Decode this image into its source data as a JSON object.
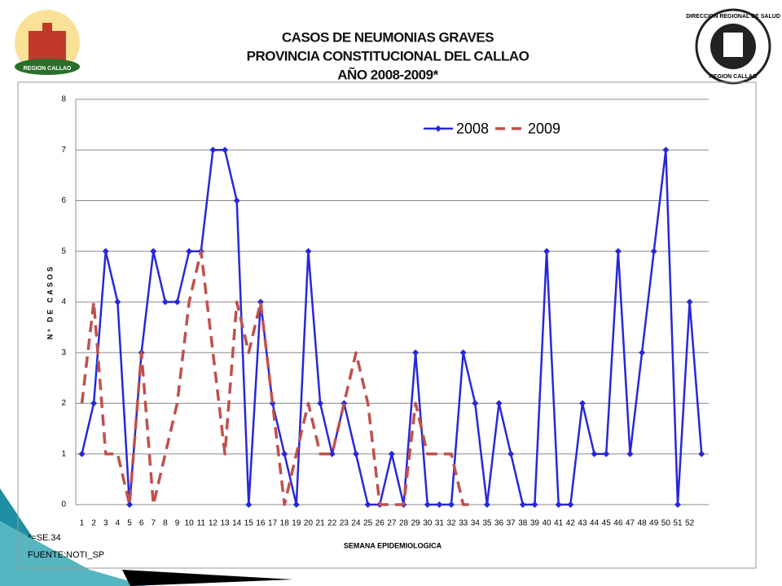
{
  "chart_data": {
    "type": "line",
    "title": "CASOS DE NEUMONIAS GRAVES",
    "subtitle": "PROVINCIA CONSTITUCIONAL DEL CALLAO",
    "subtitle2": "AÑO 2008-2009*",
    "y_label": "Nº DE CASOS",
    "x_label": "SEMANA EPIDEMIOLOGICA",
    "footnote": "*=SE.34",
    "source": "FUENTE:NOTI_SP",
    "logo_left": "REGION CALLAO",
    "logo_right_top": "DIRECCION REGIONAL DE SALUD",
    "logo_right_bottom": "REGION CALLAO",
    "categories": [
      "1",
      "2",
      "3",
      "4",
      "5",
      "6",
      "7",
      "8",
      "9",
      "10",
      "11",
      "12",
      "13",
      "14",
      "15",
      "16",
      "17",
      "18",
      "19",
      "20",
      "21",
      "22",
      "23",
      "24",
      "25",
      "26",
      "27",
      "28",
      "29",
      "30",
      "31",
      "32",
      "33",
      "34",
      "35",
      "36",
      "37",
      "38",
      "39",
      "40",
      "41",
      "42",
      "43",
      "44",
      "45",
      "46",
      "47",
      "48",
      "49",
      "50",
      "51",
      "52",
      null
    ],
    "series": [
      {
        "name": "2008",
        "color": "#2828d8",
        "style": "solid",
        "marker": "diamond",
        "values": [
          1,
          2,
          5,
          4,
          0,
          3,
          5,
          4,
          4,
          5,
          5,
          7,
          7,
          6,
          0,
          4,
          2,
          1,
          0,
          5,
          2,
          1,
          2,
          1,
          0,
          0,
          1,
          0,
          3,
          0,
          0,
          0,
          3,
          2,
          0,
          2,
          1,
          0,
          0,
          5,
          0,
          0,
          2,
          1,
          1,
          5,
          1,
          3,
          5,
          7,
          0,
          4,
          1
        ]
      },
      {
        "name": "2009",
        "color": "#c0504d",
        "style": "dashed",
        "marker": null,
        "values": [
          2,
          4,
          1,
          1,
          0,
          3,
          0,
          1,
          2,
          4,
          5,
          3,
          1,
          4,
          3,
          4,
          2,
          0,
          1,
          2,
          1,
          1,
          2,
          3,
          2,
          0,
          0,
          0,
          2,
          1,
          1,
          1,
          0,
          0,
          null,
          null,
          null,
          null,
          null,
          null,
          null,
          null,
          null,
          null,
          null,
          null,
          null,
          null,
          null,
          null,
          null,
          null,
          null
        ]
      }
    ],
    "ylim": [
      0,
      8
    ],
    "yticks": [
      0,
      1,
      2,
      3,
      4,
      5,
      6,
      7,
      8
    ],
    "grid": true,
    "legend": "top-right"
  }
}
